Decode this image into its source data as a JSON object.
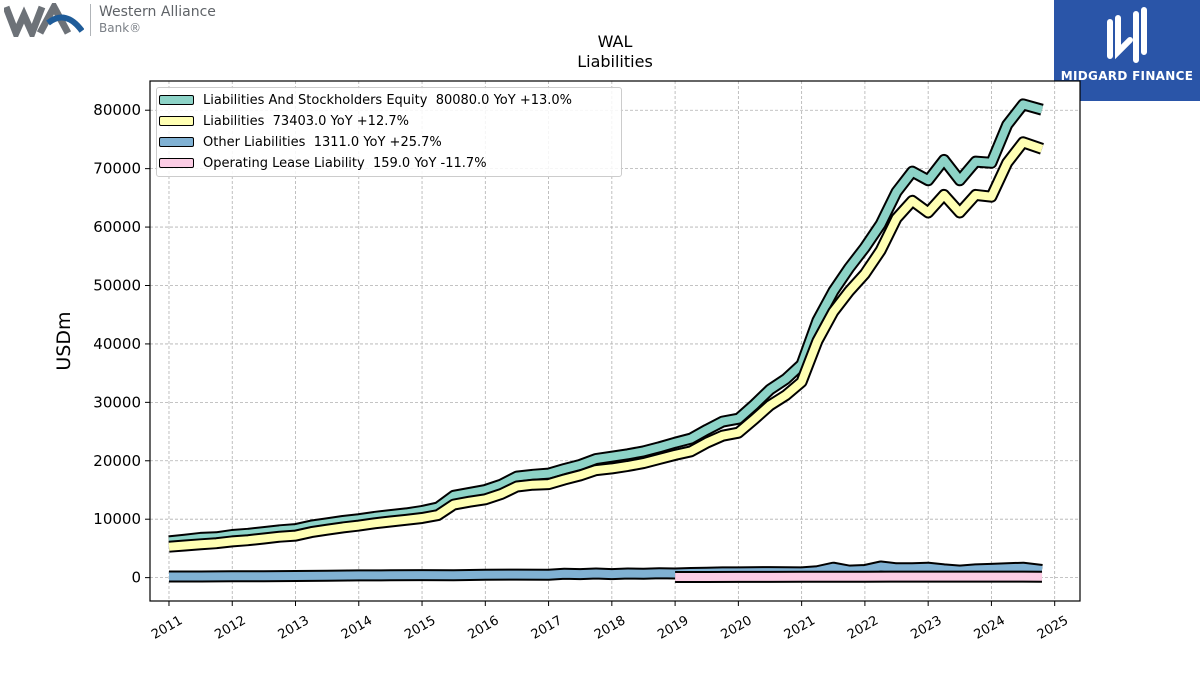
{
  "header": {
    "brand_name": "Western Alliance",
    "brand_sub": "Bank®",
    "watermark": "MIDGARD FINANCE"
  },
  "colors": {
    "equity": "#8dd3c7",
    "liabilities": "#ffffb3",
    "other": "#80b1d3",
    "lease": "#fccde5",
    "grid": "#b0b0b0",
    "watermark_bg": "#2a55a8",
    "brand_blue": "#1f5c99",
    "brand_gray": "#6d7278"
  },
  "chart_data": {
    "type": "line",
    "title": "WAL",
    "subtitle": "Liabilities",
    "ylabel": "USDm",
    "xlabel": "",
    "ylim": [
      -4000,
      85000
    ],
    "xlim": [
      2010.7,
      2025.4
    ],
    "yticks": [
      0,
      10000,
      20000,
      30000,
      40000,
      50000,
      60000,
      70000,
      80000
    ],
    "xticks": [
      2011,
      2012,
      2013,
      2014,
      2015,
      2016,
      2017,
      2018,
      2019,
      2020,
      2021,
      2022,
      2023,
      2024,
      2025
    ],
    "grid": true,
    "legend_position": "top-left",
    "legend": [
      "Liabilities And Stockholders Equity  80080.0 YoY +13.0%",
      "Liabilities  73403.0 YoY +12.7%",
      "Other Liabilities  1311.0 YoY +25.7%",
      "Operating Lease Liability  159.0 YoY -11.7%"
    ],
    "series": [
      {
        "name": "Liabilities And Stockholders Equity",
        "color": "#8dd3c7",
        "x": [
          2011.0,
          2011.25,
          2011.5,
          2011.75,
          2012.0,
          2012.25,
          2012.5,
          2012.75,
          2013.0,
          2013.25,
          2013.5,
          2013.75,
          2014.0,
          2014.25,
          2014.5,
          2014.75,
          2015.0,
          2015.25,
          2015.5,
          2015.75,
          2016.0,
          2016.25,
          2016.5,
          2016.75,
          2017.0,
          2017.25,
          2017.5,
          2017.75,
          2018.0,
          2018.25,
          2018.5,
          2018.75,
          2019.0,
          2019.25,
          2019.5,
          2019.75,
          2020.0,
          2020.25,
          2020.5,
          2020.75,
          2021.0,
          2021.25,
          2021.5,
          2021.75,
          2022.0,
          2022.25,
          2022.5,
          2022.75,
          2023.0,
          2023.25,
          2023.5,
          2023.75,
          2024.0,
          2024.25,
          2024.5,
          2024.8
        ],
        "y": [
          6200,
          6500,
          6800,
          6900,
          7300,
          7500,
          7800,
          8100,
          8300,
          8900,
          9300,
          9700,
          10000,
          10400,
          10700,
          11000,
          11400,
          12000,
          14000,
          14500,
          15000,
          15900,
          17300,
          17600,
          17800,
          18600,
          19300,
          20300,
          20700,
          21100,
          21600,
          22300,
          23100,
          23800,
          25300,
          26700,
          27200,
          29600,
          32200,
          34000,
          36500,
          44000,
          49000,
          53000,
          56500,
          60500,
          66000,
          69500,
          68000,
          71500,
          68000,
          71200,
          71000,
          77500,
          81000,
          80080
        ]
      },
      {
        "name": "Liabilities",
        "color": "#ffffb3",
        "x": [
          2011.0,
          2011.25,
          2011.5,
          2011.75,
          2012.0,
          2012.25,
          2012.5,
          2012.75,
          2013.0,
          2013.25,
          2013.5,
          2013.75,
          2014.0,
          2014.25,
          2014.5,
          2014.75,
          2015.0,
          2015.25,
          2015.5,
          2015.75,
          2016.0,
          2016.25,
          2016.5,
          2016.75,
          2017.0,
          2017.25,
          2017.5,
          2017.75,
          2018.0,
          2018.25,
          2018.5,
          2018.75,
          2019.0,
          2019.25,
          2019.5,
          2019.75,
          2020.0,
          2020.25,
          2020.5,
          2020.75,
          2021.0,
          2021.25,
          2021.5,
          2021.75,
          2022.0,
          2022.25,
          2022.5,
          2022.75,
          2023.0,
          2023.25,
          2023.5,
          2023.75,
          2024.0,
          2024.25,
          2024.5,
          2024.8
        ],
        "y": [
          5300,
          5500,
          5700,
          5900,
          6200,
          6400,
          6700,
          7000,
          7200,
          7800,
          8200,
          8600,
          8900,
          9300,
          9600,
          9900,
          10200,
          10700,
          12500,
          13000,
          13400,
          14300,
          15600,
          15900,
          16000,
          16800,
          17500,
          18400,
          18700,
          19100,
          19600,
          20300,
          21000,
          21600,
          23100,
          24300,
          24800,
          27100,
          29500,
          31200,
          33500,
          40500,
          45500,
          49000,
          52000,
          56000,
          61500,
          64500,
          62500,
          65500,
          62500,
          65500,
          65200,
          71000,
          74500,
          73403
        ]
      },
      {
        "name": "Other Liabilities",
        "color": "#80b1d3",
        "x": [
          2011.0,
          2011.5,
          2012.0,
          2012.5,
          2013.0,
          2013.5,
          2014.0,
          2014.5,
          2015.0,
          2015.5,
          2016.0,
          2016.5,
          2017.0,
          2017.25,
          2017.5,
          2017.75,
          2018.0,
          2018.25,
          2018.5,
          2018.75,
          2019.0,
          2019.25,
          2019.5,
          2019.75,
          2020.0,
          2020.5,
          2021.0,
          2021.25,
          2021.5,
          2021.75,
          2022.0,
          2022.25,
          2022.5,
          2022.75,
          2023.0,
          2023.25,
          2023.5,
          2023.75,
          2024.0,
          2024.25,
          2024.5,
          2024.8
        ],
        "y": [
          200,
          200,
          220,
          250,
          280,
          320,
          380,
          400,
          430,
          420,
          480,
          520,
          500,
          650,
          600,
          700,
          600,
          700,
          680,
          750,
          700,
          800,
          850,
          900,
          900,
          950,
          900,
          1100,
          1700,
          1200,
          1300,
          1900,
          1600,
          1600,
          1700,
          1400,
          1200,
          1400,
          1500,
          1600,
          1700,
          1311
        ]
      },
      {
        "name": "Operating Lease Liability",
        "color": "#fccde5",
        "x": [
          2019.0,
          2019.5,
          2020.0,
          2020.5,
          2021.0,
          2021.5,
          2022.0,
          2022.5,
          2023.0,
          2023.5,
          2024.0,
          2024.5,
          2024.8
        ],
        "y": [
          100,
          110,
          120,
          130,
          140,
          150,
          160,
          170,
          180,
          180,
          180,
          170,
          159
        ]
      }
    ]
  }
}
